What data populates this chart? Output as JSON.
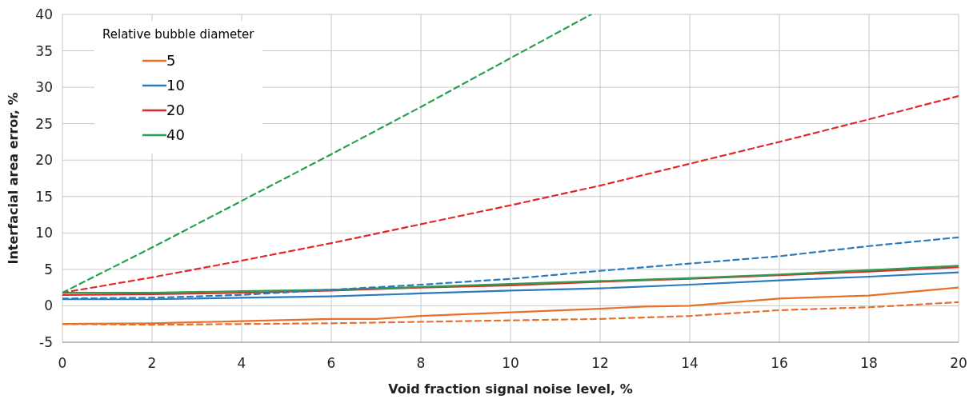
{
  "chart_data": {
    "type": "line",
    "xlabel": "Void fraction signal noise level, %",
    "ylabel": "Interfacial area error, %",
    "legend_title": "Relative bubble diameter",
    "xlim": [
      0,
      20
    ],
    "xticks": [
      0,
      2,
      4,
      6,
      8,
      10,
      12,
      14,
      16,
      18,
      20
    ],
    "ylim": [
      -5,
      40
    ],
    "yticks": [
      -5,
      0,
      5,
      10,
      15,
      20,
      25,
      30,
      35,
      40
    ],
    "grid": true,
    "legend": "top left",
    "marker": "none",
    "series": [
      {
        "name": "5",
        "color": "#e8702a",
        "line_style": "solid",
        "x": [
          0,
          2,
          4,
          6,
          7,
          8,
          10,
          12,
          13,
          14,
          16,
          18,
          20
        ],
        "values": [
          -2.5,
          -2.4,
          -2.1,
          -1.8,
          -1.8,
          -1.4,
          -0.9,
          -0.4,
          -0.1,
          0,
          1.0,
          1.4,
          2.5
        ]
      },
      {
        "name": "10",
        "color": "#2a7ac0",
        "line_style": "solid",
        "x": [
          0,
          2,
          4,
          6,
          8,
          10,
          12,
          14,
          16,
          18,
          20
        ],
        "values": [
          0.9,
          0.9,
          1.1,
          1.3,
          1.7,
          2.1,
          2.4,
          2.9,
          3.5,
          4.0,
          4.6
        ]
      },
      {
        "name": "20",
        "color": "#e02a2a",
        "line_style": "solid",
        "x": [
          0,
          2,
          4,
          6,
          8,
          10,
          12,
          14,
          16,
          18,
          20
        ],
        "values": [
          1.5,
          1.6,
          1.8,
          2.1,
          2.5,
          2.8,
          3.3,
          3.7,
          4.2,
          4.7,
          5.3
        ]
      },
      {
        "name": "40",
        "color": "#28a050",
        "line_style": "solid",
        "x": [
          0,
          2,
          4,
          6,
          8,
          10,
          12,
          14,
          16,
          18,
          20
        ],
        "values": [
          1.8,
          1.8,
          2.0,
          2.2,
          2.6,
          3.0,
          3.4,
          3.8,
          4.3,
          4.9,
          5.5
        ]
      },
      {
        "color": "#e8702a",
        "line_style": "dashed",
        "x": [
          0,
          2,
          4,
          6,
          8,
          10,
          12,
          14,
          16,
          18,
          20
        ],
        "values": [
          -2.5,
          -2.6,
          -2.5,
          -2.4,
          -2.2,
          -2.0,
          -1.8,
          -1.4,
          -0.6,
          -0.2,
          0.5
        ]
      },
      {
        "color": "#2a7ac0",
        "line_style": "dashed",
        "x": [
          0,
          2,
          4,
          6,
          8,
          10,
          12,
          14,
          16,
          18,
          20
        ],
        "values": [
          1.0,
          1.1,
          1.5,
          2.2,
          2.9,
          3.7,
          4.8,
          5.8,
          6.8,
          8.2,
          9.4
        ]
      },
      {
        "color": "#e02a2a",
        "line_style": "dashed",
        "x": [
          0,
          2,
          4,
          6,
          8,
          10,
          12,
          14,
          16,
          18,
          20
        ],
        "values": [
          1.8,
          3.9,
          6.2,
          8.6,
          11.2,
          13.8,
          16.5,
          19.5,
          22.5,
          25.6,
          28.8
        ]
      },
      {
        "color": "#28a050",
        "line_style": "dashed",
        "x": [
          0,
          2,
          4,
          6,
          8,
          10,
          11.8
        ],
        "values": [
          1.8,
          8.0,
          14.4,
          20.8,
          27.3,
          34.0,
          40
        ]
      }
    ]
  }
}
